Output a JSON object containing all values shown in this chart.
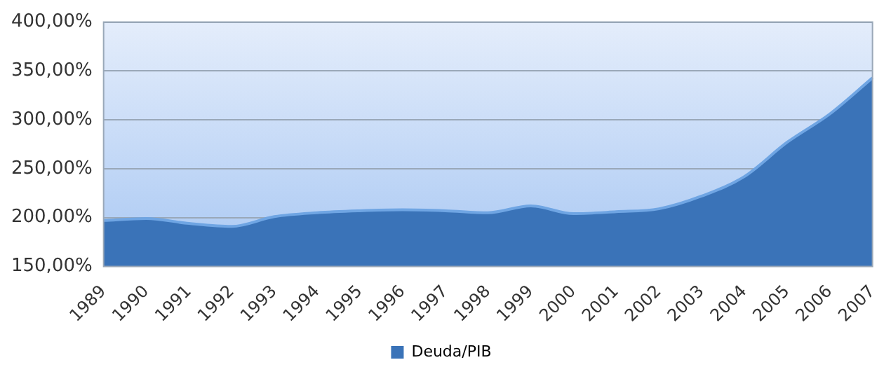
{
  "chart_data": {
    "type": "area",
    "categories": [
      "1989",
      "1990",
      "1991",
      "1992",
      "1993",
      "1994",
      "1995",
      "1996",
      "1997",
      "1998",
      "1999",
      "2000",
      "2001",
      "2002",
      "2003",
      "2004",
      "2005",
      "2006",
      "2007"
    ],
    "series": [
      {
        "name": "Deuda/PIB",
        "color": "#3a73b8",
        "values": [
          197,
          199,
          194,
          191,
          201,
          205,
          207,
          208,
          207,
          205,
          212,
          204,
          206,
          209,
          222,
          242,
          277,
          306,
          343
        ]
      }
    ],
    "ylim": [
      150,
      400
    ],
    "yticks": [
      {
        "value": 150,
        "label": "150,00%"
      },
      {
        "value": 200,
        "label": "200,00%"
      },
      {
        "value": 250,
        "label": "250,00%"
      },
      {
        "value": 300,
        "label": "300,00%"
      },
      {
        "value": 350,
        "label": "350,00%"
      },
      {
        "value": 400,
        "label": "400,00%"
      }
    ],
    "grid": "y",
    "legend": "bottom"
  }
}
